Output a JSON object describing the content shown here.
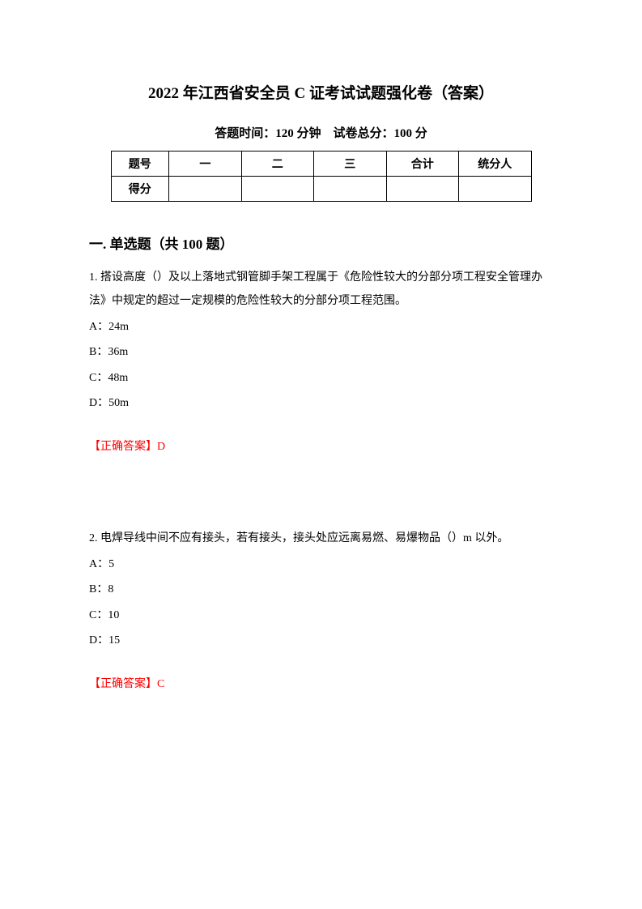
{
  "title": "2022 年江西省安全员 C 证考试试题强化卷（答案）",
  "subtitle": "答题时间：120 分钟　试卷总分：100 分",
  "table": {
    "headers": [
      "题号",
      "一",
      "二",
      "三",
      "合计",
      "统分人"
    ],
    "row_label": "得分"
  },
  "section_title": "一. 单选题（共 100 题）",
  "q1": {
    "text": "1. 搭设高度（）及以上落地式钢管脚手架工程属于《危险性较大的分部分项工程安全管理办法》中规定的超过一定规模的危险性较大的分部分项工程范围。",
    "optA": "A：24m",
    "optB": "B：36m",
    "optC": "C：48m",
    "optD": "D：50m",
    "answer": "【正确答案】D"
  },
  "q2": {
    "text": "2. 电焊导线中间不应有接头，若有接头，接头处应远离易燃、易爆物品（）m 以外。",
    "optA": "A：5",
    "optB": "B：8",
    "optC": "C：10",
    "optD": "D：15",
    "answer": "【正确答案】C"
  }
}
